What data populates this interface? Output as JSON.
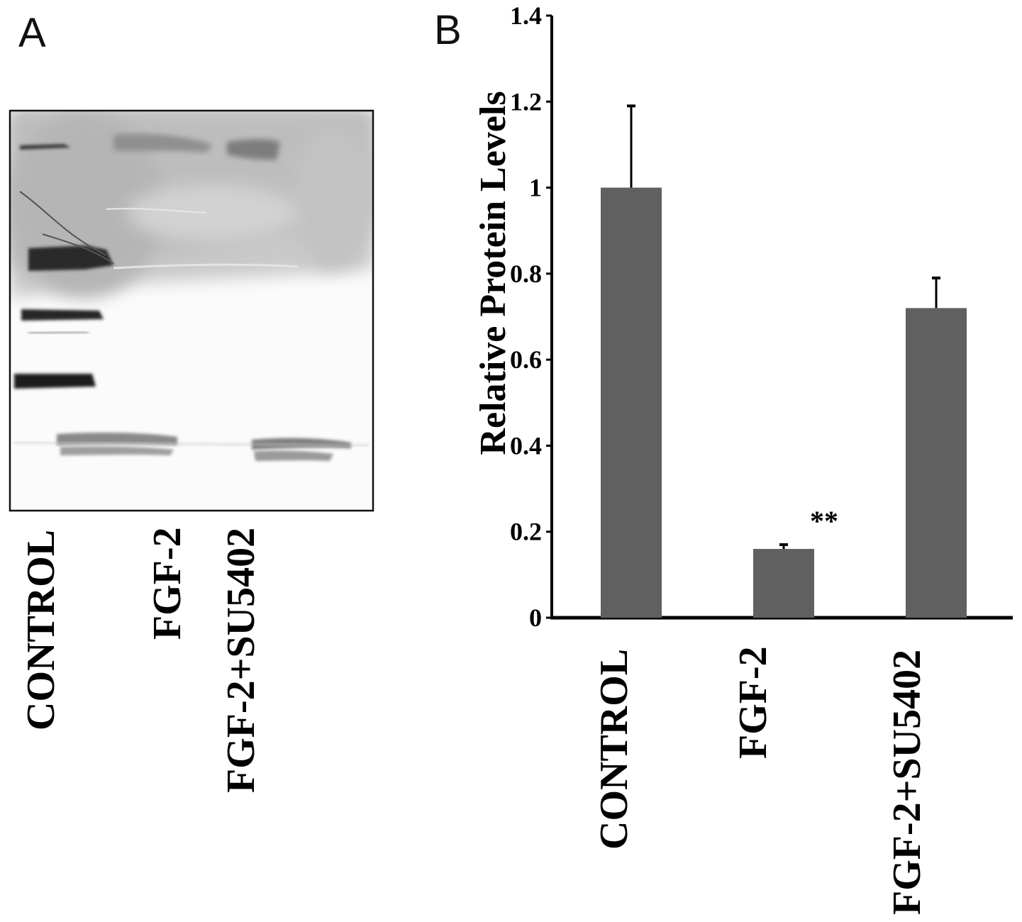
{
  "panel_a": {
    "letter": "A",
    "lane_labels": [
      "CONTROL",
      "FGF-2",
      "FGF-2+SU5402"
    ]
  },
  "panel_b": {
    "letter": "B"
  },
  "colors": {
    "bar": "#606060",
    "axis": "#000000",
    "text": "#000000"
  },
  "chart_data": {
    "type": "bar",
    "title": "",
    "xlabel": "",
    "ylabel": "Relative Protein Levels",
    "categories": [
      "CONTROL",
      "FGF-2",
      "FGF-2+SU5402"
    ],
    "values": [
      1.0,
      0.16,
      0.72
    ],
    "error_bars": [
      0.19,
      0.01,
      0.07
    ],
    "annotations": [
      {
        "category": "FGF-2",
        "text": "**"
      }
    ],
    "ylim": [
      0,
      1.4
    ],
    "yticks": [
      "0",
      "0.2",
      "0.4",
      "0.6",
      "0.8",
      "1",
      "1.2",
      "1.4"
    ],
    "grid": false,
    "legend": "none"
  }
}
